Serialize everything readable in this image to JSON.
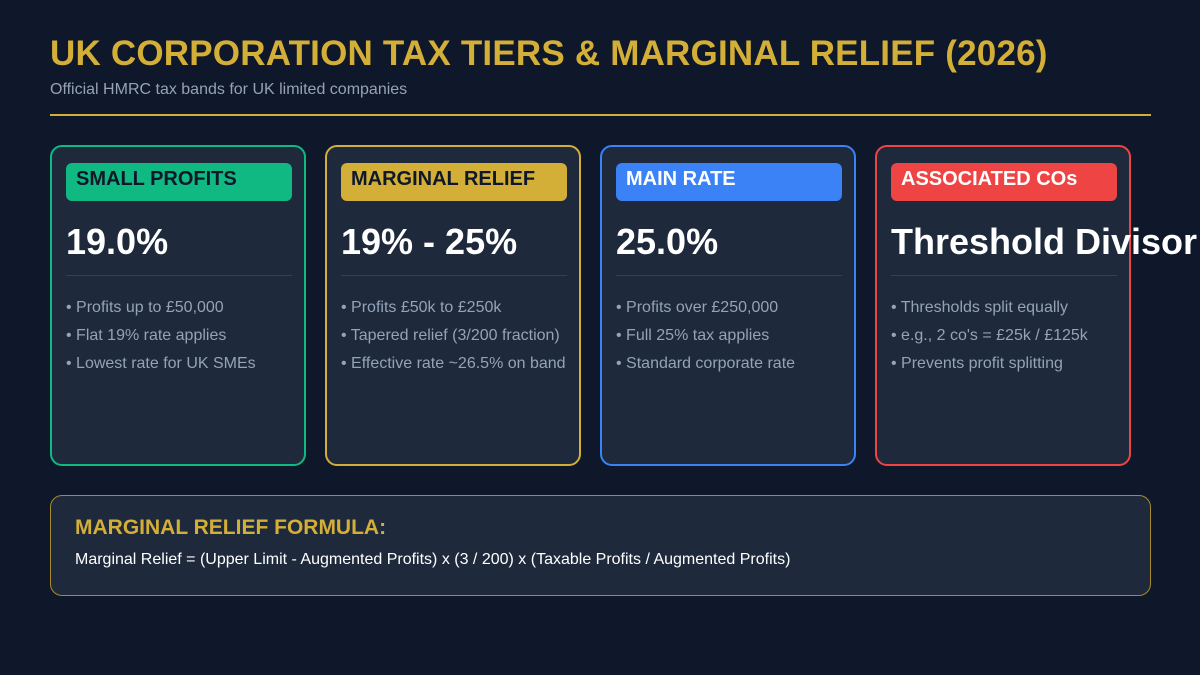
{
  "title": "UK CORPORATION TAX TIERS & MARGINAL RELIEF (2026)",
  "subtitle": "Official HMRC tax bands for UK limited companies",
  "colors": {
    "background": "#0f172a",
    "card": "#1e293b",
    "gold": "#d4af37",
    "green": "#10b981",
    "blue": "#3b82f6",
    "red": "#ef4444"
  },
  "cards": [
    {
      "label": "SMALL PROFITS",
      "rate": "19.0%",
      "points": [
        "• Profits up to £50,000",
        "• Flat 19% rate applies",
        "• Lowest rate for UK SMEs"
      ]
    },
    {
      "label": "MARGINAL RELIEF",
      "rate": "19% - 25%",
      "points": [
        "• Profits £50k to £250k",
        "• Tapered relief (3/200 fraction)",
        "• Effective rate ~26.5% on band"
      ]
    },
    {
      "label": "MAIN RATE",
      "rate": "25.0%",
      "points": [
        "• Profits over £250,000",
        "• Full 25% tax applies",
        "• Standard corporate rate"
      ]
    },
    {
      "label": "ASSOCIATED COs",
      "rate": "Threshold Divisor",
      "points": [
        "• Thresholds split equally",
        "• e.g., 2 co's = £25k / £125k",
        "• Prevents profit splitting"
      ]
    }
  ],
  "formula": {
    "title": "MARGINAL RELIEF FORMULA:",
    "text": "Marginal Relief = (Upper Limit - Augmented Profits) x (3 / 200) x (Taxable Profits / Augmented Profits)"
  }
}
